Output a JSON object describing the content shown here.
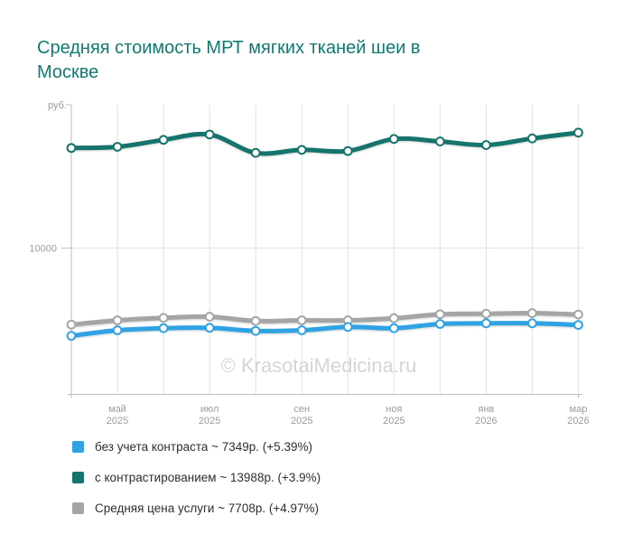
{
  "page": {
    "title": "Средняя стоимость МРТ мягких тканей шеи в Москве",
    "title_lines": [
      "Средняя стоимость МРТ мягких тканей шеи в",
      "Москве"
    ]
  },
  "watermark": "© KrasotaiMedicina.ru",
  "colors": {
    "title": "#0e7a72",
    "axis_line": "#bdbdbd",
    "gridline": "#e1e1e1",
    "axis_text": "#9b9b9b",
    "watermark": "#d5d5d5",
    "legend_text": "#2e2e2e",
    "background": "#ffffff"
  },
  "chart_data": {
    "type": "line",
    "title": "Средняя стоимость МРТ мягких тканей шеи в Москве",
    "ylabel": "руб.",
    "y_axis": {
      "unit_label": "руб.",
      "tick_label": "10000",
      "tick_value": 10000
    },
    "ylim": [
      4950,
      14950
    ],
    "grid": true,
    "legend_position": "bottom",
    "x_point_count": 12,
    "x_tick_labels": [
      {
        "slot": 1,
        "month": "май",
        "year": "2025"
      },
      {
        "slot": 3,
        "month": "июл",
        "year": "2025"
      },
      {
        "slot": 5,
        "month": "сен",
        "year": "2025"
      },
      {
        "slot": 7,
        "month": "ноя",
        "year": "2025"
      },
      {
        "slot": 9,
        "month": "янв",
        "year": "2026"
      },
      {
        "slot": 11,
        "month": "мар",
        "year": "2026"
      }
    ],
    "series": [
      {
        "key": "no-contrast",
        "name": "без учета контраста",
        "legend": "без учета контраста ~ 7349р. (+5.39%)",
        "current_value": "7349р.",
        "change": "+5.39%",
        "color": "#2ea2e2",
        "values": [
          6973,
          7165,
          7237,
          7250,
          7143,
          7165,
          7280,
          7237,
          7383,
          7405,
          7405,
          7349
        ]
      },
      {
        "key": "with-contrast",
        "name": "с контрастированием",
        "legend": "с контрастированием ~ 13988р. (+3.9%)",
        "current_value": "13988р.",
        "change": "+3.9%",
        "color": "#15756c",
        "values": [
          13460,
          13500,
          13740,
          13925,
          13290,
          13395,
          13355,
          13770,
          13685,
          13560,
          13790,
          13988
        ]
      },
      {
        "key": "average-price",
        "name": "Средняя цена услуги",
        "legend": "Средняя цена услуги ~ 7708р. (+4.97%)",
        "current_value": "7708р.",
        "change": "+4.97%",
        "color": "#a5a5a5",
        "values": [
          7360,
          7508,
          7593,
          7632,
          7486,
          7508,
          7508,
          7580,
          7717,
          7736,
          7757,
          7708
        ]
      }
    ]
  }
}
